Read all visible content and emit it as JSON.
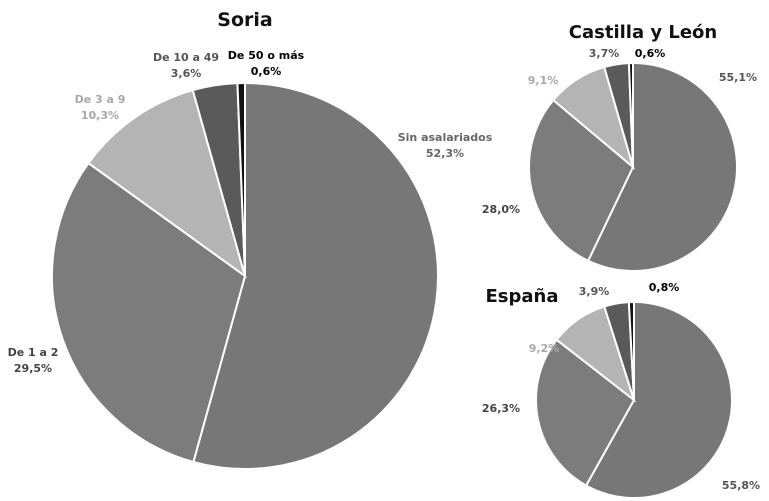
{
  "chart_data": [
    {
      "type": "pie",
      "title": "Soria",
      "start_angle_deg": 0,
      "colors": {
        "Sin asalariados": "#777777",
        "De 1 a 2": "#7c7c7c",
        "De 3 a 9": "#b4b4b4",
        "De 10 a 49": "#5a5a5a",
        "De 50 o más": "#111111"
      },
      "slices": [
        {
          "category": "Sin asalariados",
          "value": 52.3,
          "label_name": "Sin asalariados",
          "label_value": "52,3%",
          "label_color": "#666666"
        },
        {
          "category": "De 1 a 2",
          "value": 29.5,
          "label_name": "De 1 a 2",
          "label_value": "29,5%",
          "label_color": "#444444"
        },
        {
          "category": "De 3 a 9",
          "value": 10.3,
          "label_name": "De 3 a 9",
          "label_value": "10,3%",
          "label_color": "#a8a8a8"
        },
        {
          "category": "De 10 a 49",
          "value": 3.6,
          "label_name": "De 10 a 49",
          "label_value": "3,6%",
          "label_color": "#555555"
        },
        {
          "category": "De 50 o más",
          "value": 0.6,
          "label_name": "De 50 o más",
          "label_value": "0,6%",
          "label_color": "#000000"
        }
      ]
    },
    {
      "type": "pie",
      "title": "Castilla y León",
      "slices": [
        {
          "category": "Sin asalariados",
          "value": 55.1,
          "label_value": "55,1%",
          "label_color": "#555555"
        },
        {
          "category": "De 1 a 2",
          "value": 28.0,
          "label_value": "28,0%",
          "label_color": "#444444"
        },
        {
          "category": "De 3 a 9",
          "value": 9.1,
          "label_value": "9,1%",
          "label_color": "#a8a8a8"
        },
        {
          "category": "De 10 a 49",
          "value": 3.7,
          "label_value": "3,7%",
          "label_color": "#555555"
        },
        {
          "category": "De 50 o más",
          "value": 0.6,
          "label_value": "0,6%",
          "label_color": "#000000"
        }
      ]
    },
    {
      "type": "pie",
      "title": "España",
      "slices": [
        {
          "category": "Sin asalariados",
          "value": 55.8,
          "label_value": "55,8%",
          "label_color": "#555555"
        },
        {
          "category": "De 1 a 2",
          "value": 26.3,
          "label_value": "26,3%",
          "label_color": "#444444"
        },
        {
          "category": "De 3 a 9",
          "value": 9.2,
          "label_value": "9,2%",
          "label_color": "#a8a8a8"
        },
        {
          "category": "De 10 a 49",
          "value": 3.9,
          "label_value": "3,9%",
          "label_color": "#555555"
        },
        {
          "category": "De 50 o más",
          "value": 0.8,
          "label_value": "0,8%",
          "label_color": "#000000"
        }
      ]
    }
  ]
}
